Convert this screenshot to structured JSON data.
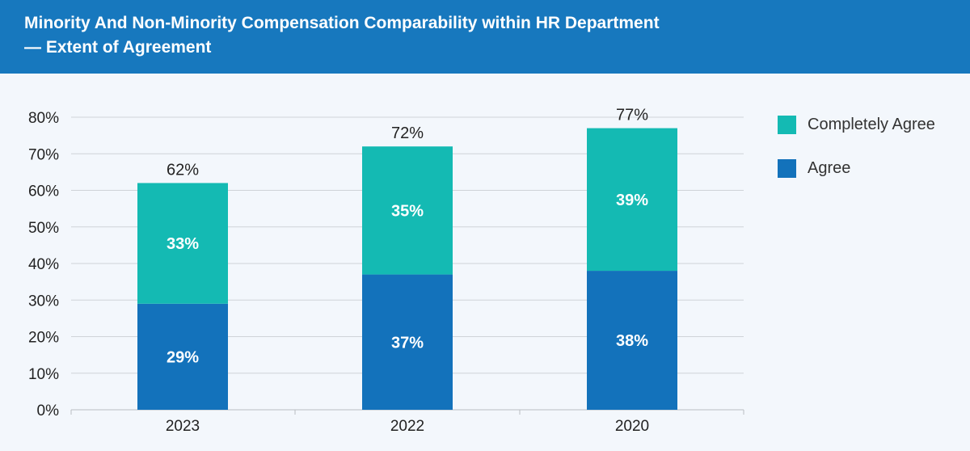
{
  "header": {
    "title_line1": "Minority And Non-Minority Compensation Comparability within HR Department",
    "title_line2": "— Extent of Agreement"
  },
  "colors": {
    "header_bg": "#1778be",
    "agree": "#1372bb",
    "completely_agree": "#14bab3",
    "background": "#f3f7fc"
  },
  "legend": [
    {
      "label": "Completely Agree",
      "color": "#14bab3"
    },
    {
      "label": "Agree",
      "color": "#1372bb"
    }
  ],
  "chart_data": {
    "type": "bar",
    "stacked": true,
    "title": "Minority And Non-Minority Compensation Comparability within HR Department — Extent of Agreement",
    "categories": [
      "2023",
      "2022",
      "2020"
    ],
    "series": [
      {
        "name": "Agree",
        "values": [
          29,
          37,
          38
        ],
        "labels": [
          "29%",
          "37%",
          "38%"
        ],
        "color": "#1372bb"
      },
      {
        "name": "Completely Agree",
        "values": [
          33,
          35,
          39
        ],
        "labels": [
          "33%",
          "35%",
          "39%"
        ],
        "color": "#14bab3"
      }
    ],
    "totals": [
      62,
      72,
      77
    ],
    "total_labels": [
      "62%",
      "72%",
      "77%"
    ],
    "ylim": [
      0,
      80
    ],
    "yticks": [
      "0%",
      "10%",
      "20%",
      "30%",
      "40%",
      "50%",
      "60%",
      "70%",
      "80%"
    ],
    "grid": true,
    "legend_position": "right",
    "xlabel": "",
    "ylabel": ""
  }
}
